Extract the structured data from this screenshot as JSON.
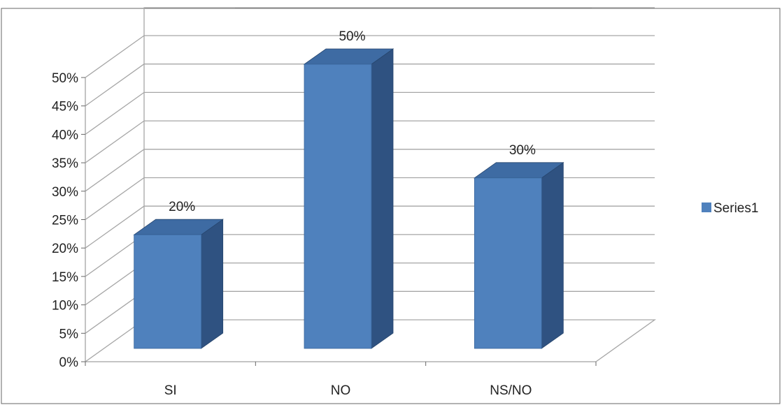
{
  "chart_data": {
    "type": "bar",
    "categories": [
      "SI",
      "NO",
      "NS/NO"
    ],
    "series": [
      {
        "name": "Series1",
        "values": [
          20,
          50,
          30
        ]
      }
    ],
    "data_labels": [
      "20%",
      "50%",
      "30%"
    ],
    "y_ticks": [
      "0%",
      "5%",
      "10%",
      "15%",
      "20%",
      "25%",
      "30%",
      "35%",
      "40%",
      "45%",
      "50%"
    ],
    "ylim": [
      0,
      50
    ],
    "grid": true,
    "style": "3d-column",
    "legend_position": "right",
    "colors": {
      "bar_front": "#4F81BD",
      "bar_side": "#2F5281",
      "bar_top": "#3E6BA3",
      "grid": "#a6a6a6"
    }
  }
}
